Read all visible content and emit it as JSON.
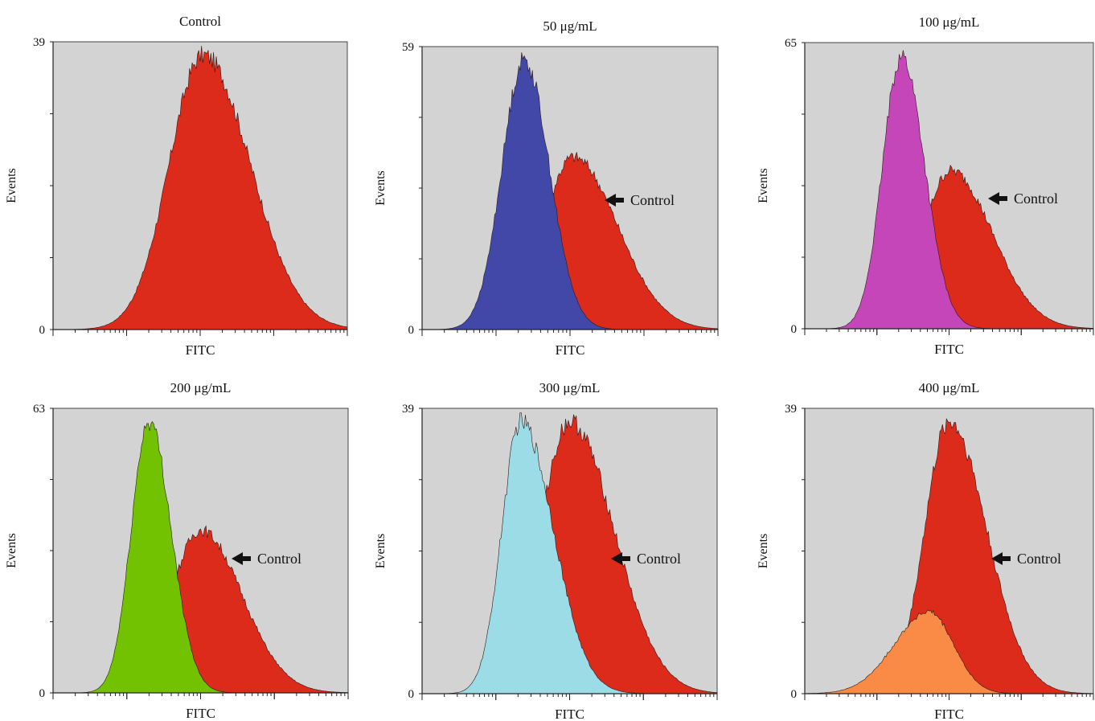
{
  "chart_data": [
    {
      "type": "area",
      "title": "Control",
      "xlabel": "FITC",
      "ylabel": "Events",
      "xscale": "log",
      "ylim": [
        0,
        39
      ],
      "y_ticks": [
        "0",
        "39"
      ],
      "series": [
        {
          "color": "#dc2a1b",
          "role": "control",
          "peak_center": 0.51,
          "peak_height": 1.0,
          "spread_left": 0.115,
          "spread_right": 0.16
        }
      ]
    },
    {
      "type": "area",
      "title": "50 μg/mL",
      "xlabel": "FITC",
      "ylabel": "Events",
      "xscale": "log",
      "ylim": [
        0,
        59
      ],
      "y_ticks": [
        "0",
        "59"
      ],
      "annotation": "Control",
      "series": [
        {
          "color": "#dc2a1b",
          "role": "control",
          "peak_center": 0.51,
          "peak_height": 0.64,
          "spread_left": 0.1,
          "spread_right": 0.15
        },
        {
          "color": "#4148a8",
          "role": "treated",
          "peak_center": 0.345,
          "peak_height": 1.0,
          "spread_left": 0.075,
          "spread_right": 0.085
        }
      ]
    },
    {
      "type": "area",
      "title": "100 μg/mL",
      "xlabel": "FITC",
      "ylabel": "Events",
      "xscale": "log",
      "ylim": [
        0,
        65
      ],
      "y_ticks": [
        "0",
        "65"
      ],
      "annotation": "Control",
      "series": [
        {
          "color": "#dc2a1b",
          "role": "control",
          "peak_center": 0.505,
          "peak_height": 0.58,
          "spread_left": 0.095,
          "spread_right": 0.145
        },
        {
          "color": "#c446b8",
          "role": "treated",
          "peak_center": 0.335,
          "peak_height": 1.0,
          "spread_left": 0.065,
          "spread_right": 0.08
        }
      ]
    },
    {
      "type": "area",
      "title": "200 μg/mL",
      "xlabel": "FITC",
      "ylabel": "Events",
      "xscale": "log",
      "ylim": [
        0,
        63
      ],
      "y_ticks": [
        "0",
        "63"
      ],
      "annotation": "Control",
      "series": [
        {
          "color": "#dc2a1b",
          "role": "control",
          "peak_center": 0.5,
          "peak_height": 0.6,
          "spread_left": 0.1,
          "spread_right": 0.14
        },
        {
          "color": "#72c202",
          "role": "treated",
          "peak_center": 0.325,
          "peak_height": 1.0,
          "spread_left": 0.06,
          "spread_right": 0.075
        }
      ]
    },
    {
      "type": "area",
      "title": "300 μg/mL",
      "xlabel": "FITC",
      "ylabel": "Events",
      "xscale": "log",
      "ylim": [
        0,
        39
      ],
      "y_ticks": [
        "0",
        "39"
      ],
      "annotation": "Control",
      "series": [
        {
          "color": "#dc2a1b",
          "role": "control",
          "peak_center": 0.5,
          "peak_height": 1.0,
          "spread_left": 0.1,
          "spread_right": 0.15
        },
        {
          "color": "#9bdce6",
          "role": "treated",
          "peak_center": 0.335,
          "peak_height": 1.0,
          "spread_left": 0.065,
          "spread_right": 0.11
        }
      ]
    },
    {
      "type": "area",
      "title": "400 μg/mL",
      "xlabel": "FITC",
      "ylabel": "Events",
      "xscale": "log",
      "ylim": [
        0,
        39
      ],
      "y_ticks": [
        "0",
        "39"
      ],
      "annotation": "Control",
      "series": [
        {
          "color": "#dc2a1b",
          "role": "control",
          "peak_center": 0.5,
          "peak_height": 1.0,
          "spread_left": 0.085,
          "spread_right": 0.13
        },
        {
          "color": "#fa8b47",
          "role": "treated",
          "peak_center": 0.43,
          "peak_height": 0.3,
          "spread_left": 0.12,
          "spread_right": 0.085
        }
      ]
    }
  ]
}
